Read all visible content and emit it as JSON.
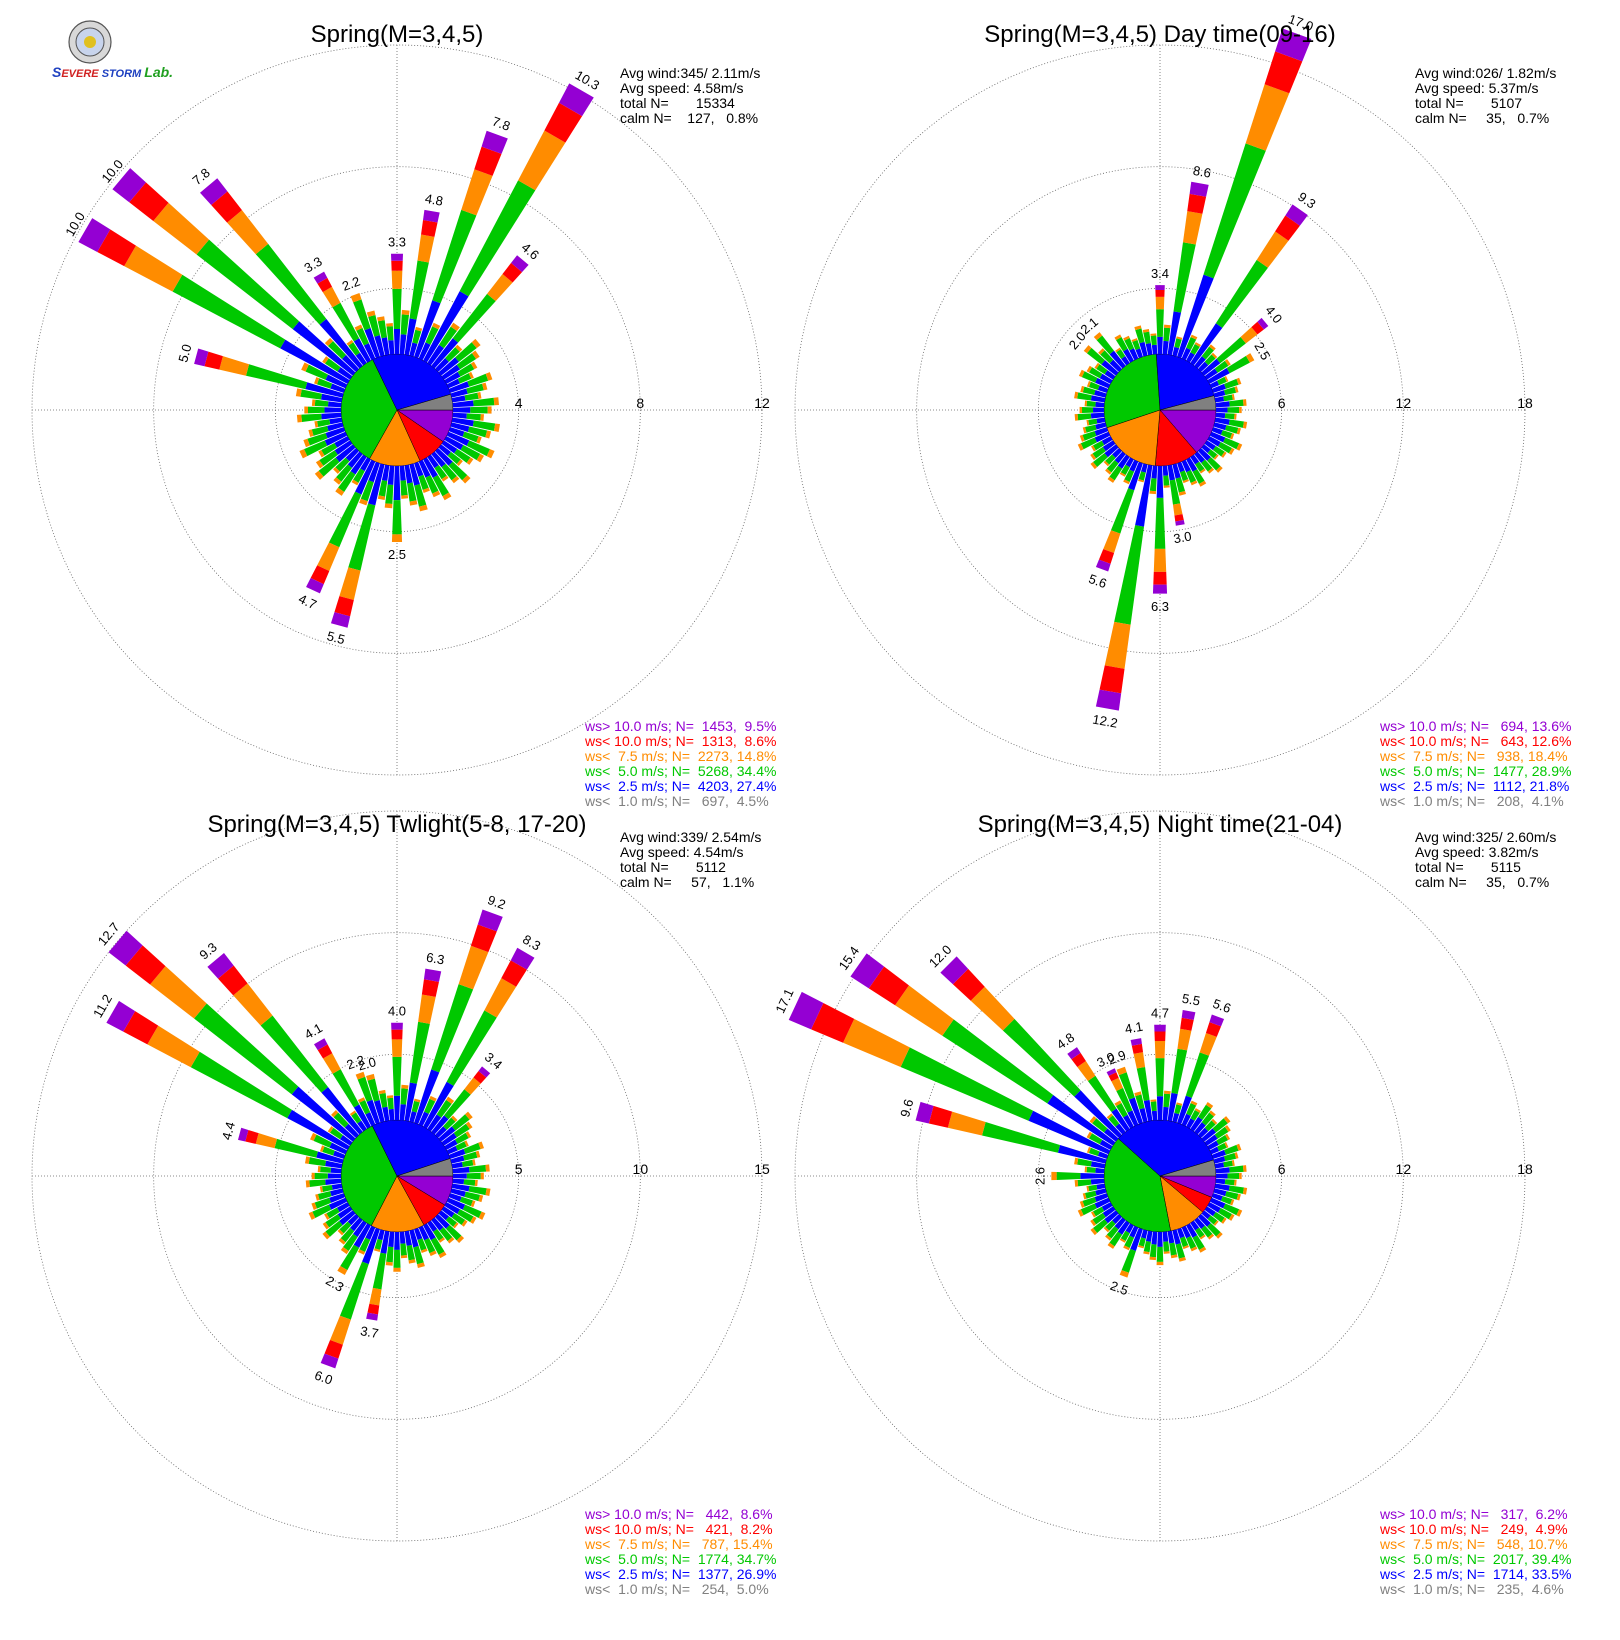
{
  "logo": {
    "text": "Severe Storm Lab."
  },
  "legend_colors": [
    "#9400d3",
    "#ff0000",
    "#ff8c00",
    "#00c800",
    "#0000ff",
    "#808080"
  ],
  "charts": [
    {
      "title": "Spring(M=3,4,5)",
      "stats": [
        "Avg wind:345/ 2.11m/s",
        "Avg speed: 4.58m/s",
        "total N=       15334",
        "calm N=    127,   0.8%"
      ],
      "legend": [
        "ws> 10.0 m/s; N=  1453,  9.5%",
        "ws< 10.0 m/s; N=  1313,  8.6%",
        "ws<  7.5 m/s; N=  2273, 14.8%",
        "ws<  5.0 m/s; N=  5268, 34.4%",
        "ws<  2.5 m/s; N=  4203, 27.4%",
        "ws<  1.0 m/s; N=   697,  4.5%"
      ],
      "rings": [
        4,
        8,
        12
      ],
      "ring_labels": [
        "4",
        "8",
        "12"
      ],
      "max": 12,
      "pie": [
        9.5,
        8.6,
        14.8,
        34.4,
        27.4,
        4.5
      ],
      "labeled": [
        {
          "dir": 10,
          "total": 4.8,
          "label": "4.8"
        },
        {
          "dir": 20,
          "total": 7.8,
          "label": "7.8"
        },
        {
          "dir": 30,
          "total": 10.3,
          "label": "10.3"
        },
        {
          "dir": 40,
          "total": 4.6,
          "label": "4.6"
        },
        {
          "dir": 0,
          "total": 3.3,
          "label": "3.3"
        },
        {
          "dir": 340,
          "total": 2.2,
          "label": "2.2"
        },
        {
          "dir": 330,
          "total": 3.3,
          "label": "3.3"
        },
        {
          "dir": 320,
          "total": 7.8,
          "label": "7.8"
        },
        {
          "dir": 310,
          "total": 10.0,
          "label": "10.0"
        },
        {
          "dir": 300,
          "total": 10.0,
          "label": "10.0"
        },
        {
          "dir": 285,
          "total": 5.0,
          "label": "5.0"
        },
        {
          "dir": 180,
          "total": 2.5,
          "label": "2.5"
        },
        {
          "dir": 195,
          "total": 5.5,
          "label": "5.5"
        },
        {
          "dir": 205,
          "total": 4.7,
          "label": "4.7"
        }
      ]
    },
    {
      "title": "Spring(M=3,4,5) Day time(09-16)",
      "stats": [
        "Avg wind:026/ 1.82m/s",
        "Avg speed: 5.37m/s",
        "total N=       5107",
        "calm N=     35,   0.7%"
      ],
      "legend": [
        "ws> 10.0 m/s; N=   694, 13.6%",
        "ws< 10.0 m/s; N=   643, 12.6%",
        "ws<  7.5 m/s; N=   938, 18.4%",
        "ws<  5.0 m/s; N=  1477, 28.9%",
        "ws<  2.5 m/s; N=  1112, 21.8%",
        "ws<  1.0 m/s; N=   208,  4.1%"
      ],
      "rings": [
        6,
        12,
        18
      ],
      "ring_labels": [
        "6",
        "12",
        "18"
      ],
      "max": 18,
      "pie": [
        13.6,
        12.6,
        18.4,
        28.9,
        21.8,
        4.1
      ],
      "labeled": [
        {
          "dir": 10,
          "total": 8.6,
          "label": "8.6"
        },
        {
          "dir": 20,
          "total": 17.0,
          "label": "17.0"
        },
        {
          "dir": 35,
          "total": 9.3,
          "label": "9.3"
        },
        {
          "dir": 50,
          "total": 4.0,
          "label": "4.0"
        },
        {
          "dir": 60,
          "total": 2.5,
          "label": "2.5"
        },
        {
          "dir": 0,
          "total": 3.4,
          "label": "3.4"
        },
        {
          "dir": 320,
          "total": 2.1,
          "label": "2.1"
        },
        {
          "dir": 310,
          "total": 2.0,
          "label": "2.0"
        },
        {
          "dir": 170,
          "total": 3.0,
          "label": "3.0"
        },
        {
          "dir": 180,
          "total": 6.3,
          "label": "6.3"
        },
        {
          "dir": 190,
          "total": 12.2,
          "label": "12.2"
        },
        {
          "dir": 200,
          "total": 5.6,
          "label": "5.6"
        }
      ]
    },
    {
      "title": "Spring(M=3,4,5) Twlight(5-8, 17-20)",
      "stats": [
        "Avg wind:339/ 2.54m/s",
        "Avg speed: 4.54m/s",
        "total N=       5112",
        "calm N=     57,   1.1%"
      ],
      "legend": [
        "ws> 10.0 m/s; N=   442,  8.6%",
        "ws< 10.0 m/s; N=   421,  8.2%",
        "ws<  7.5 m/s; N=   787, 15.4%",
        "ws<  5.0 m/s; N=  1774, 34.7%",
        "ws<  2.5 m/s; N=  1377, 26.9%",
        "ws<  1.0 m/s; N=   254,  5.0%"
      ],
      "rings": [
        5,
        10,
        15
      ],
      "ring_labels": [
        "5",
        "10",
        "15"
      ],
      "max": 15,
      "pie": [
        8.6,
        8.2,
        15.4,
        34.7,
        26.9,
        5.0
      ],
      "labeled": [
        {
          "dir": 10,
          "total": 6.3,
          "label": "6.3"
        },
        {
          "dir": 20,
          "total": 9.2,
          "label": "9.2"
        },
        {
          "dir": 30,
          "total": 8.3,
          "label": "8.3"
        },
        {
          "dir": 40,
          "total": 3.4,
          "label": "3.4"
        },
        {
          "dir": 0,
          "total": 4.0,
          "label": "4.0"
        },
        {
          "dir": 345,
          "total": 2.0,
          "label": "2.0"
        },
        {
          "dir": 340,
          "total": 2.2,
          "label": "2.2"
        },
        {
          "dir": 330,
          "total": 4.1,
          "label": "4.1"
        },
        {
          "dir": 320,
          "total": 9.3,
          "label": "9.3"
        },
        {
          "dir": 310,
          "total": 12.7,
          "label": "12.7"
        },
        {
          "dir": 300,
          "total": 11.2,
          "label": "11.2"
        },
        {
          "dir": 285,
          "total": 4.4,
          "label": "4.4"
        },
        {
          "dir": 190,
          "total": 3.7,
          "label": "3.7"
        },
        {
          "dir": 200,
          "total": 6.0,
          "label": "6.0"
        },
        {
          "dir": 210,
          "total": 2.3,
          "label": "2.3"
        }
      ]
    },
    {
      "title": "Spring(M=3,4,5) Night time(21-04)",
      "stats": [
        "Avg wind:325/ 2.60m/s",
        "Avg speed: 3.82m/s",
        "total N=       5115",
        "calm N=     35,   0.7%"
      ],
      "legend": [
        "ws> 10.0 m/s; N=   317,  6.2%",
        "ws< 10.0 m/s; N=   249,  4.9%",
        "ws<  7.5 m/s; N=   548, 10.7%",
        "ws<  5.0 m/s; N=  2017, 39.4%",
        "ws<  2.5 m/s; N=  1714, 33.5%",
        "ws<  1.0 m/s; N=   235,  4.6%"
      ],
      "rings": [
        6,
        12,
        18
      ],
      "ring_labels": [
        "6",
        "12",
        "18"
      ],
      "max": 18,
      "pie": [
        6.2,
        4.9,
        10.7,
        39.4,
        33.5,
        4.6
      ],
      "labeled": [
        {
          "dir": 0,
          "total": 4.7,
          "label": "4.7"
        },
        {
          "dir": 10,
          "total": 5.5,
          "label": "5.5"
        },
        {
          "dir": 20,
          "total": 5.6,
          "label": "5.6"
        },
        {
          "dir": 350,
          "total": 4.1,
          "label": "4.1"
        },
        {
          "dir": 340,
          "total": 2.9,
          "label": "2.9"
        },
        {
          "dir": 335,
          "total": 3.0,
          "label": "3.0"
        },
        {
          "dir": 325,
          "total": 4.8,
          "label": "4.8"
        },
        {
          "dir": 315,
          "total": 12.0,
          "label": "12.0"
        },
        {
          "dir": 305,
          "total": 15.4,
          "label": "15.4"
        },
        {
          "dir": 295,
          "total": 17.1,
          "label": "17.1"
        },
        {
          "dir": 285,
          "total": 9.6,
          "label": "9.6"
        },
        {
          "dir": 270,
          "total": 2.6,
          "label": "2.6"
        },
        {
          "dir": 200,
          "total": 2.5,
          "label": "2.5"
        }
      ]
    }
  ]
}
